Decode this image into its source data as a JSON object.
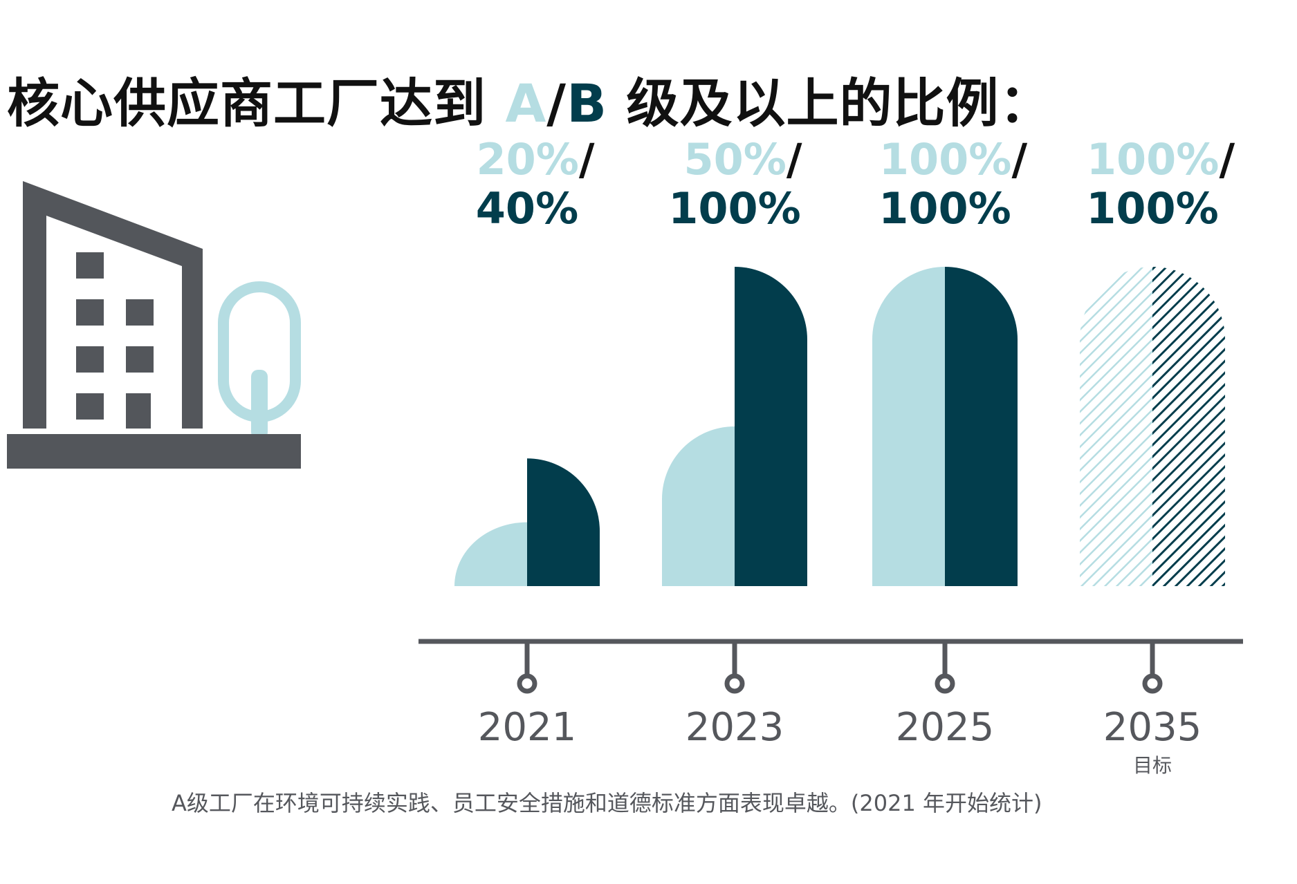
{
  "title": {
    "prefix": "核心供应商工厂达到 ",
    "grade_a": "A",
    "slash": "/",
    "grade_b": "B",
    "suffix": " 级及以上的比例："
  },
  "footnote": "A级工厂在环境可持续实践、员工安全措施和道德标准方面表现卓越。(2021 年开始统计)",
  "colors": {
    "grade_a": "#b5dde2",
    "grade_b": "#023d4c",
    "axis": "#55575c",
    "icon_gray": "#53565b",
    "tree": "#b5dde2",
    "text": "#111111"
  },
  "chart_data": {
    "type": "bar",
    "title": "核心供应商工厂达到 A/B 级及以上的比例：",
    "ylim": [
      0,
      100
    ],
    "series": [
      {
        "name": "A",
        "values": [
          20,
          50,
          100,
          100
        ]
      },
      {
        "name": "A/B",
        "values": [
          40,
          100,
          100,
          100
        ]
      }
    ],
    "periods": [
      {
        "year": "2021",
        "sub": "",
        "a": 20,
        "ab": 40,
        "a_label": "20%",
        "ab_label": "40%",
        "target": false
      },
      {
        "year": "2023",
        "sub": "",
        "a": 50,
        "ab": 100,
        "a_label": "50%",
        "ab_label": "100%",
        "target": false
      },
      {
        "year": "2025",
        "sub": "",
        "a": 100,
        "ab": 100,
        "a_label": "100%",
        "ab_label": "100%",
        "target": false
      },
      {
        "year": "2035",
        "sub": "目标",
        "a": 100,
        "ab": 100,
        "a_label": "100%",
        "ab_label": "100%",
        "target": true
      }
    ],
    "separator": "/",
    "legend": "none",
    "grid": false
  }
}
